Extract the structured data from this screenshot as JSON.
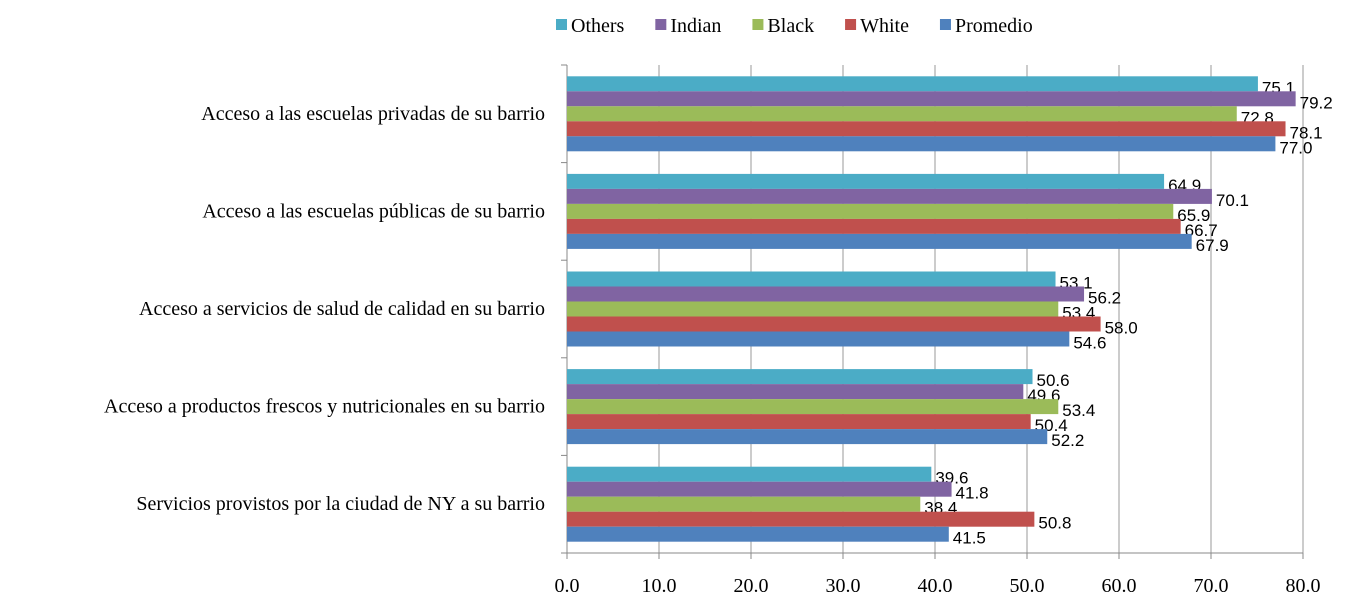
{
  "chart_data": {
    "type": "hbar",
    "categories": [
      "Acceso a las escuelas privadas de su barrio",
      "Acceso a las escuelas públicas de su barrio",
      "Acceso a servicios de salud de calidad en su barrio",
      "Acceso a productos frescos y nutricionales en su barrio",
      "Servicios provistos por la ciudad de NY a su barrio"
    ],
    "series": [
      {
        "name": "Others",
        "color": "#4bacc6",
        "values": [
          75.1,
          64.9,
          53.1,
          50.6,
          39.6
        ],
        "value_labels": [
          "75.1",
          "64.9",
          "53.1",
          "50.6",
          "39.6"
        ]
      },
      {
        "name": "Indian",
        "color": "#8064a2",
        "values": [
          79.2,
          70.1,
          56.2,
          49.6,
          41.8
        ],
        "value_labels": [
          "79.2",
          "70.1",
          "56.2",
          "49.6",
          "41.8"
        ]
      },
      {
        "name": "Black",
        "color": "#9bbb59",
        "values": [
          72.8,
          65.9,
          53.4,
          53.4,
          38.4
        ],
        "value_labels": [
          "72.8",
          "65.9",
          "53.4",
          "53.4",
          "38.4"
        ]
      },
      {
        "name": "White",
        "color": "#c0504d",
        "values": [
          78.1,
          66.7,
          58.0,
          50.4,
          50.8
        ],
        "value_labels": [
          "78.1",
          "66.7",
          "58.0",
          "50.4",
          "50.8"
        ]
      },
      {
        "name": "Promedio",
        "color": "#4f81bd",
        "values": [
          77.0,
          67.9,
          54.6,
          52.2,
          41.5
        ],
        "value_labels": [
          "77.0",
          "67.9",
          "54.6",
          "52.2",
          "41.5"
        ]
      }
    ],
    "xlim": [
      0,
      80
    ],
    "xticks": [
      {
        "value": 0,
        "label": "0.0"
      },
      {
        "value": 10,
        "label": "10.0"
      },
      {
        "value": 20,
        "label": "20.0"
      },
      {
        "value": 30,
        "label": "30.0"
      },
      {
        "value": 40,
        "label": "40.0"
      },
      {
        "value": 50,
        "label": "50.0"
      },
      {
        "value": 60,
        "label": "60.0"
      },
      {
        "value": 70,
        "label": "70.0"
      },
      {
        "value": 80,
        "label": "80.0"
      }
    ],
    "grid": true,
    "legend": "top"
  }
}
